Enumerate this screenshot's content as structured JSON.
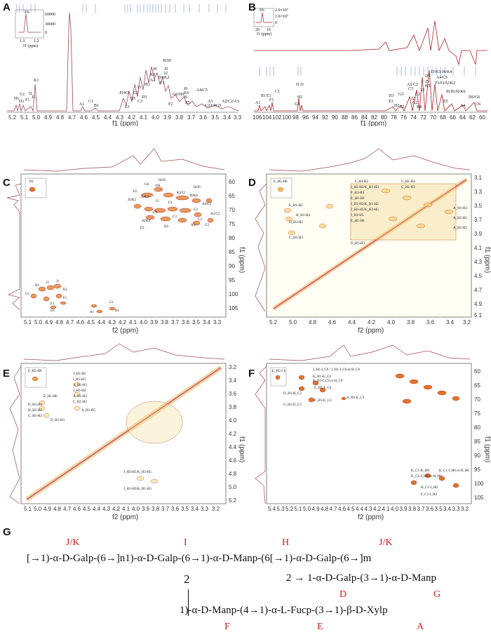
{
  "panels": {
    "A": {
      "label": "A",
      "xlabel": "f1 (ppm)",
      "ticks": [
        "5.2",
        "5.1",
        "5.0",
        "4.9",
        "4.8",
        "4.7",
        "4.6",
        "4.5",
        "4.4",
        "4.3",
        "4.2",
        "4.1",
        "4.0",
        "3.9",
        "3.8",
        "3.7",
        "3.6",
        "3.5",
        "3.4",
        "3.3"
      ],
      "annotations": [
        "H1",
        "G1",
        "D1",
        "F1",
        "I1",
        "J1",
        "K1",
        "A1",
        "C1",
        "B1",
        "J5/K5",
        "E3",
        "D5",
        "G2",
        "C3",
        "I3",
        "D3",
        "J6'",
        "K6'",
        "H3",
        "A4",
        "D4",
        "F3",
        "I6/I6'",
        "J5",
        "I2",
        "K2",
        "F2",
        "G6/H6",
        "J6",
        "K6",
        "I6",
        "E5",
        "A3",
        "A4/C5",
        "C2/C4",
        "G5",
        "A2/C2/A5"
      ],
      "inset_label": "E6",
      "inset_ticks": [
        "1.3",
        "1.2"
      ],
      "inset_xlabel": "f1 (ppm)",
      "inset_yticks": [
        "60000",
        "30000",
        "0"
      ]
    },
    "B": {
      "label": "B",
      "xlabel": "f1 (ppm)",
      "ticks": [
        "106",
        "104",
        "102",
        "100",
        "98",
        "96",
        "94",
        "92",
        "90",
        "88",
        "86",
        "84",
        "82",
        "80",
        "78",
        "76",
        "74",
        "72",
        "70",
        "68",
        "66",
        "64",
        "62",
        "60"
      ],
      "annotations": [
        "A1",
        "B1",
        "E1",
        "F1",
        "C1",
        "G1",
        "I1",
        "J1",
        "H1",
        "D3",
        "E3",
        "H2",
        "E2",
        "G3",
        "A2/C2",
        "C3",
        "J2",
        "G2",
        "C2",
        "B4",
        "I3",
        "D5",
        "J5",
        "K5",
        "J3/K3/J4/K4",
        "A4/C5",
        "F3/I3/J2/K2",
        "E5",
        "I6/I6/J6/K6",
        "A4",
        "D6/G6",
        "C6"
      ],
      "inset_label": "E6",
      "inset_ticks": [
        "20",
        "16"
      ],
      "inset_xlabel": "f1 (ppm)",
      "inset_yticks": [
        "2.0×10⁷",
        "1.0×10⁷",
        "0"
      ]
    },
    "C": {
      "label": "C",
      "xlabel": "f2 (ppm)",
      "ylabel": "f1 (ppm)",
      "xticks": [
        "5.1",
        "5.0",
        "4.9",
        "4.8",
        "4.7",
        "4.6",
        "4.5",
        "4.4",
        "4.3",
        "4.2",
        "4.1",
        "4.0",
        "3.9",
        "3.8",
        "3.7",
        "3.6",
        "3.5",
        "3.4",
        "3.3"
      ],
      "yticks": [
        "60",
        "65",
        "70",
        "75",
        "80",
        "85",
        "90",
        "95",
        "100",
        "105"
      ],
      "annotations": [
        "I6/J6",
        "G6",
        "D6",
        "E5",
        "J5/K5",
        "J3/K3",
        "I3",
        "D3",
        "E3",
        "H2",
        "J4/K4",
        "C3",
        "F3",
        "K2/J2",
        "I6/I6",
        "J6/K6",
        "A4/C5",
        "G2",
        "A3",
        "G5",
        "C2",
        "A2/C2",
        "H1",
        "I1",
        "J1",
        "G1",
        "K1",
        "F1",
        "E1",
        "D1",
        "C1",
        "A1",
        "B1"
      ],
      "inset_label": "E6"
    },
    "D": {
      "label": "D",
      "xlabel": "f2 (ppm)",
      "ylabel": "f1 (ppm)",
      "xticks": [
        "5.2",
        "5.0",
        "4.8",
        "4.6",
        "4.4",
        "4.2",
        "4.0",
        "3.8",
        "3.6",
        "3.4",
        "3.2"
      ],
      "yticks": [
        "3.1",
        "3.3",
        "3.5",
        "3.7",
        "3.9",
        "4.1",
        "4.3",
        "4.5",
        "4.7",
        "4.9",
        "5.1"
      ],
      "annotations": [
        "F_H1-H2",
        "C_H1-H4",
        "J_H1-H3/K_H1-H3",
        "F_H1-H3",
        "E_H2-H3",
        "C_H1-H3",
        "J_H1-H2/K_H1-H2",
        "E_H1-H2",
        "D_H1-H2",
        "G_H1-H2",
        "A_H1-H3",
        "A_H1-H2",
        "H_H1-H2",
        "J_H3-H5/K_H3-H5",
        "D_H1-H3",
        "J_H1-H5",
        "E_H5-H6",
        "A_H1-H5"
      ],
      "inset_label": "E_H5-H6"
    },
    "E": {
      "label": "E",
      "xlabel": "f2 (ppm)",
      "ylabel": "f1 (ppm)",
      "xticks": [
        "5.1",
        "5.0",
        "4.9",
        "4.8",
        "4.7",
        "4.6",
        "4.5",
        "4.4",
        "4.3",
        "4.2",
        "4.1",
        "4.0",
        "3.9",
        "3.8",
        "3.7",
        "3.6",
        "3.5",
        "3.4",
        "3.3",
        "3.2"
      ],
      "yticks": [
        "3.2",
        "3.4",
        "3.6",
        "3.8",
        "4.0",
        "4.2",
        "4.4",
        "4.6",
        "4.8",
        "5.0",
        "5.2"
      ],
      "annotations": [
        "J_H1-H2",
        "I_H1-H3",
        "A_H1-H3",
        "J_H1-H4",
        "E_H1-H6",
        "A_H1-H2",
        "C_H1-H3",
        "D_H1-H2",
        "H_H1-H2",
        "G_H1-H2",
        "D_H1-H3",
        "A_H1-H5",
        "J_H3-H5/K_H3-H5",
        "J_H1-H3/K_H1-H3"
      ],
      "inset_label": "E_H5-H6"
    },
    "F": {
      "label": "F",
      "xlabel": "f2 (ppm)",
      "ylabel": "f1 (ppm)",
      "xticks": [
        "5.4",
        "5.3",
        "5.2",
        "5.1",
        "5.0",
        "4.9",
        "4.8",
        "4.7",
        "4.6",
        "4.5",
        "4.4",
        "4.3",
        "4.2",
        "4.1",
        "4.0",
        "3.9",
        "3.8",
        "3.7",
        "3.6",
        "3.5",
        "3.4",
        "3.3",
        "3.2"
      ],
      "yticks": [
        "60",
        "65",
        "70",
        "75",
        "80",
        "85",
        "90",
        "95",
        "100",
        "105"
      ],
      "annotations": [
        "J_H1-I_C6 / J_H1-I_C6 or H_C6",
        "K_H1-K_C6",
        "K_H1-I_C6 or H_C6",
        "E_H1-F_C4",
        "F_H1-E_C3",
        "D_H1-H_C2",
        "G_H1-D_C3",
        "A_H1-E_C3",
        "K_C1-K_H6'",
        "K_C1-I_H6' or H_H6'",
        "H_C1-I_H6",
        "K_C1-I_H6 or H_H6",
        "F_C1-I_H2"
      ],
      "inset_label": "E_H5-C6"
    },
    "G": {
      "label": "G",
      "line1": "[→1)-α-D-Galp-(6→]n1)-α-D-Galp-(6→1)-α-D-Manp-(6[→1)-α-D-Galp-(6→]m",
      "red_top": [
        "J/K",
        "I",
        "H",
        "J/K"
      ],
      "branch_number_left": "2",
      "branch_right": "2 → 1-α-D-Galp-(3→1)-α-D-Manp",
      "red_mid": [
        "D",
        "G"
      ],
      "line3": "1)-α-D-Manp-(4→1)-α-L-Fucp-(3→1)-β-D-Xylp",
      "red_bottom": [
        "F",
        "E",
        "A"
      ]
    }
  }
}
